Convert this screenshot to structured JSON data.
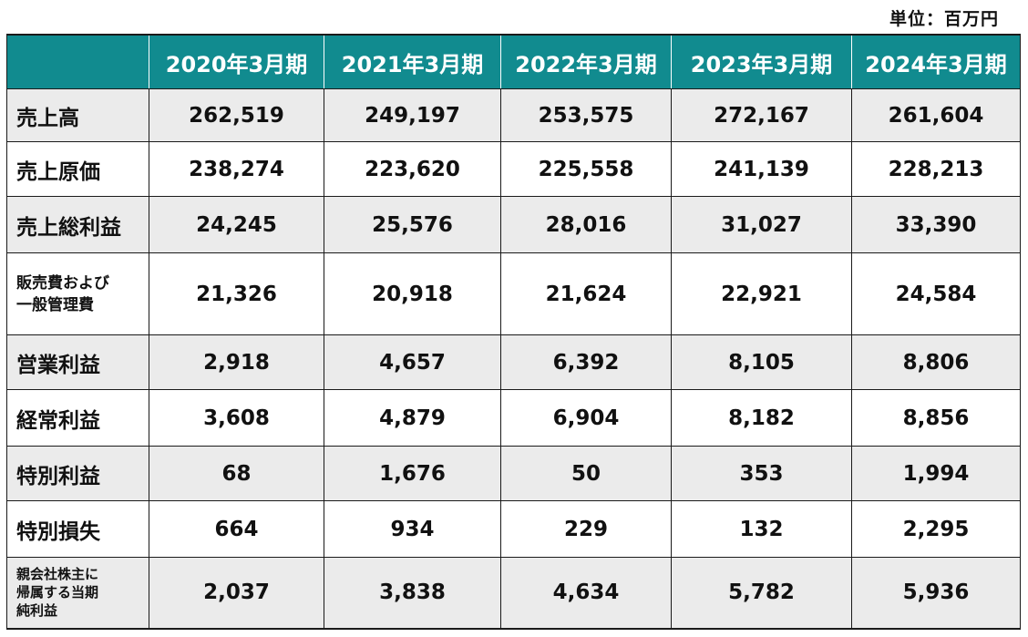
{
  "unit_label": "単位：百万円",
  "header": {
    "corner": "",
    "columns": [
      "2020年3月期",
      "2021年3月期",
      "2022年3月期",
      "2023年3月期",
      "2024年3月期"
    ]
  },
  "rows": [
    {
      "label": "売上高",
      "values": [
        "262,519",
        "249,197",
        "253,575",
        "272,167",
        "261,604"
      ]
    },
    {
      "label": "売上原価",
      "values": [
        "238,274",
        "223,620",
        "225,558",
        "241,139",
        "228,213"
      ]
    },
    {
      "label": "売上総利益",
      "values": [
        "24,245",
        "25,576",
        "28,016",
        "31,027",
        "33,390"
      ]
    },
    {
      "label_lines": [
        "販売費および",
        "一般管理費"
      ],
      "values": [
        "21,326",
        "20,918",
        "21,624",
        "22,921",
        "24,584"
      ]
    },
    {
      "label": "営業利益",
      "values": [
        "2,918",
        "4,657",
        "6,392",
        "8,105",
        "8,806"
      ]
    },
    {
      "label": "経常利益",
      "values": [
        "3,608",
        "4,879",
        "6,904",
        "8,182",
        "8,856"
      ]
    },
    {
      "label": "特別利益",
      "values": [
        "68",
        "1,676",
        "50",
        "353",
        "1,994"
      ]
    },
    {
      "label": "特別損失",
      "values": [
        "664",
        "934",
        "229",
        "132",
        "2,295"
      ]
    },
    {
      "label_lines": [
        "親会社株主に",
        "帰属する当期",
        "純利益"
      ],
      "values": [
        "2,037",
        "3,838",
        "4,634",
        "5,782",
        "5,936"
      ]
    }
  ]
}
